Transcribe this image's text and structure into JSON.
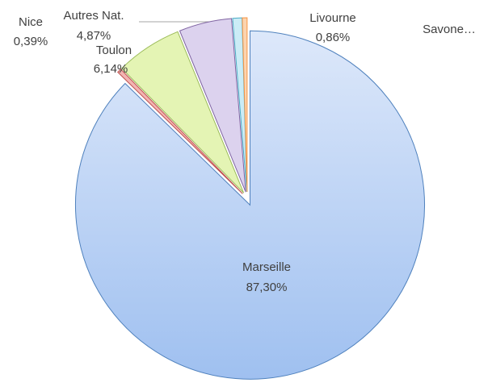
{
  "chart_data": {
    "type": "pie",
    "categories": [
      "Marseille",
      "Nice",
      "Toulon",
      "Autres Nat.",
      "Livourne",
      "Savone…"
    ],
    "values": [
      87.3,
      0.39,
      6.14,
      4.87,
      0.86,
      0.44
    ],
    "value_labels": [
      "87,30%",
      "0,39%",
      "6,14%",
      "4,87%",
      "0,86%",
      null
    ],
    "colors": [
      "#b4cef4",
      "#f2b4b2",
      "#e4f4b4",
      "#dcd2ee",
      "#cbecf6",
      "#fbd4b0"
    ],
    "strokes": [
      "#4f81bd",
      "#c0504d",
      "#9bbb59",
      "#8064a2",
      "#4bacc6",
      "#f79646"
    ]
  }
}
